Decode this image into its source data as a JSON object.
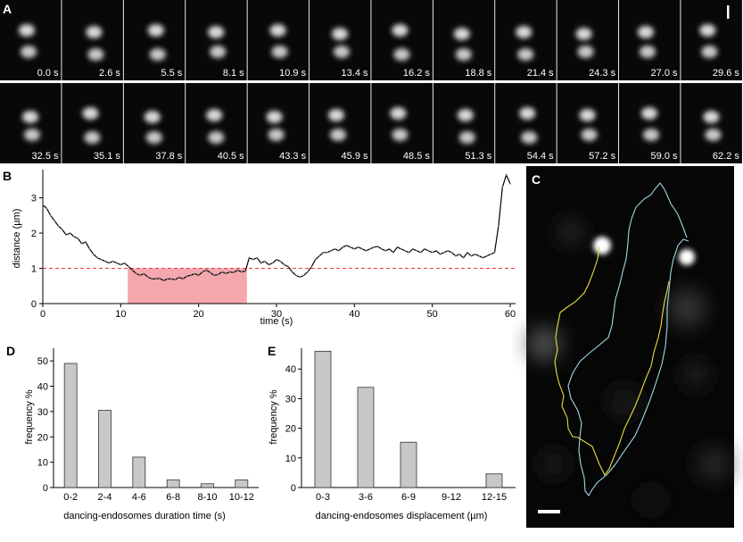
{
  "panels": {
    "a": {
      "label": "A"
    },
    "b": {
      "label": "B"
    },
    "c": {
      "label": "C"
    },
    "d": {
      "label": "D"
    },
    "e": {
      "label": "E"
    }
  },
  "frames": {
    "row1": [
      "0.0 s",
      "2.6 s",
      "5.5 s",
      "8.1 s",
      "10.9 s",
      "13.4 s",
      "16.2 s",
      "18.8 s",
      "21.4 s",
      "24.3 s",
      "27.0 s",
      "29.6 s"
    ],
    "row2": [
      "32.5 s",
      "35.1 s",
      "37.8 s",
      "40.5 s",
      "43.3 s",
      "45.9 s",
      "48.5 s",
      "51.3 s",
      "54.4 s",
      "57.2 s",
      "59.0 s",
      "62.2 s"
    ]
  },
  "colors": {
    "line": "#000000",
    "threshold": "#e8383a",
    "highlight": "#f4a8ae",
    "bar_fill": "#c8c8c8",
    "track_yellow": "#e6dc3c",
    "track_cyan": "#9ed8e6"
  },
  "chart_data": [
    {
      "id": "B",
      "type": "line",
      "xlabel": "time (s)",
      "ylabel": "distance (µm)",
      "xlim": [
        0,
        60
      ],
      "ylim": [
        0,
        3.8
      ],
      "xticks": [
        0,
        10,
        20,
        30,
        40,
        50,
        60
      ],
      "yticks": [
        0,
        1,
        2,
        3
      ],
      "threshold": 1,
      "highlight_range": [
        10.9,
        26.2
      ],
      "series": [
        {
          "x": [
            0,
            0.5,
            1,
            1.5,
            2,
            2.5,
            3,
            3.5,
            4,
            4.5,
            5,
            5.5,
            6,
            6.5,
            7,
            7.5,
            8,
            8.5,
            9,
            9.5,
            10,
            10.5,
            11,
            11.5,
            12,
            12.5,
            13,
            13.5,
            14,
            14.5,
            15,
            15.5,
            16,
            16.5,
            17,
            17.5,
            18,
            18.5,
            19,
            19.5,
            20,
            20.5,
            21,
            21.5,
            22,
            22.5,
            23,
            23.5,
            24,
            24.5,
            25,
            25.5,
            26,
            26.5,
            27,
            27.5,
            28,
            28.5,
            29,
            29.5,
            30,
            30.5,
            31,
            31.5,
            32,
            32.5,
            33,
            33.5,
            34,
            34.5,
            35,
            35.5,
            36,
            36.5,
            37,
            37.5,
            38,
            38.5,
            39,
            39.5,
            40,
            40.5,
            41,
            41.5,
            42,
            42.5,
            43,
            43.5,
            44,
            44.5,
            45,
            45.5,
            46,
            46.5,
            47,
            47.5,
            48,
            48.5,
            49,
            49.5,
            50,
            50.5,
            51,
            51.5,
            52,
            52.5,
            53,
            53.5,
            54,
            54.5,
            55,
            55.5,
            56,
            56.5,
            57,
            57.5,
            58,
            58.5,
            59,
            59.5,
            60
          ],
          "y": [
            2.8,
            2.7,
            2.5,
            2.35,
            2.2,
            2.1,
            1.95,
            2.0,
            1.9,
            1.85,
            1.7,
            1.75,
            1.55,
            1.4,
            1.3,
            1.25,
            1.2,
            1.15,
            1.2,
            1.15,
            1.1,
            1.15,
            1.05,
            0.95,
            0.85,
            0.8,
            0.85,
            0.75,
            0.7,
            0.7,
            0.72,
            0.65,
            0.7,
            0.7,
            0.68,
            0.75,
            0.7,
            0.78,
            0.8,
            0.85,
            0.8,
            0.9,
            0.95,
            0.88,
            0.8,
            0.82,
            0.9,
            0.85,
            0.9,
            0.88,
            0.95,
            0.9,
            0.92,
            1.3,
            1.25,
            1.3,
            1.15,
            1.2,
            1.1,
            1.15,
            1.25,
            1.2,
            1.1,
            1.05,
            0.9,
            0.8,
            0.75,
            0.8,
            0.9,
            1.05,
            1.25,
            1.35,
            1.45,
            1.45,
            1.5,
            1.55,
            1.5,
            1.6,
            1.65,
            1.6,
            1.55,
            1.6,
            1.55,
            1.5,
            1.55,
            1.6,
            1.62,
            1.55,
            1.5,
            1.55,
            1.45,
            1.6,
            1.55,
            1.5,
            1.45,
            1.55,
            1.5,
            1.45,
            1.55,
            1.5,
            1.45,
            1.5,
            1.4,
            1.45,
            1.5,
            1.45,
            1.35,
            1.4,
            1.3,
            1.45,
            1.35,
            1.4,
            1.35,
            1.3,
            1.35,
            1.4,
            1.45,
            2.2,
            3.3,
            3.65,
            3.4
          ]
        }
      ]
    },
    {
      "id": "D",
      "type": "bar",
      "categories": [
        "0-2",
        "2-4",
        "4-6",
        "6-8",
        "8-10",
        "10-12"
      ],
      "values": [
        49,
        30.5,
        12,
        3,
        1.5,
        3
      ],
      "xlabel": "dancing-endosomes duration time (s)",
      "ylabel": "frequency %",
      "ylim": [
        0,
        55
      ],
      "yticks": [
        0,
        10,
        20,
        30,
        40,
        50
      ]
    },
    {
      "id": "E",
      "type": "bar",
      "categories": [
        "0-3",
        "3-6",
        "6-9",
        "9-12",
        "12-15"
      ],
      "values": [
        46,
        33.8,
        15.3,
        0,
        4.6
      ],
      "xlabel": "dancing-endosomes displacement (µm)",
      "ylabel": "frequency %",
      "ylim": [
        0,
        47
      ],
      "yticks": [
        0,
        10,
        20,
        30,
        40
      ]
    }
  ]
}
